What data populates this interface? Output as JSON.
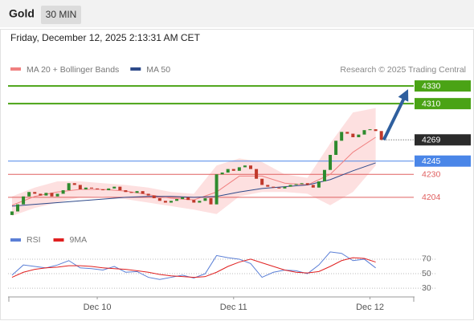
{
  "header": {
    "title": "Gold",
    "interval": "30 MIN",
    "timestamp": "Friday, December 12, 2025 2:13:31 AM CET"
  },
  "chart_data": [
    {
      "type": "candlestick",
      "source": "Research © 2025 Trading Central",
      "up_color": "#2e8b2e",
      "down_color": "#c0392b",
      "xlim": [
        -15.7,
        55.7
      ],
      "ylim": [
        4173,
        4341
      ],
      "xticks": [
        {
          "value": 0,
          "label": "Dec 10"
        },
        {
          "value": 24,
          "label": "Dec 11"
        },
        {
          "value": 48,
          "label": "Dec 12"
        }
      ],
      "x": [
        -15,
        -14,
        -13,
        -12,
        -11,
        -10,
        -9,
        -8,
        -7,
        -6,
        -5,
        -4,
        -3,
        -2,
        -1,
        0,
        1,
        2,
        3,
        4,
        5,
        6,
        7,
        8,
        9,
        10,
        11,
        12,
        13,
        14,
        15,
        16,
        17,
        18,
        19,
        20,
        21,
        22,
        23,
        24,
        25,
        26,
        27,
        28,
        29,
        30,
        31,
        32,
        33,
        34,
        35,
        36,
        37,
        38,
        39,
        40,
        41,
        42,
        43,
        44,
        45,
        46,
        47,
        48,
        49,
        50
      ],
      "open": [
        4184,
        4188,
        4196,
        4205,
        4210,
        4208,
        4206,
        4209,
        4205,
        4208,
        4212,
        4220,
        4218,
        4213,
        4215,
        4214,
        4213,
        4212,
        4214,
        4216,
        4212,
        4210,
        4209,
        4211,
        4208,
        4206,
        4203,
        4200,
        4198,
        4200,
        4202,
        4204,
        4201,
        4198,
        4200,
        4203,
        4196,
        4230,
        4232,
        4236,
        4234,
        4238,
        4240,
        4236,
        4225,
        4218,
        4216,
        4215,
        4214,
        4216,
        4218,
        4219,
        4220,
        4218,
        4215,
        4222,
        4235,
        4252,
        4268,
        4278,
        4276,
        4272,
        4275,
        4280,
        4281,
        4279
      ],
      "close": [
        4188,
        4196,
        4205,
        4210,
        4208,
        4206,
        4209,
        4205,
        4208,
        4212,
        4220,
        4218,
        4213,
        4215,
        4214,
        4213,
        4212,
        4214,
        4216,
        4212,
        4210,
        4209,
        4211,
        4208,
        4206,
        4203,
        4200,
        4198,
        4200,
        4202,
        4204,
        4201,
        4198,
        4200,
        4203,
        4196,
        4230,
        4232,
        4236,
        4234,
        4238,
        4240,
        4236,
        4225,
        4218,
        4216,
        4215,
        4214,
        4216,
        4218,
        4219,
        4220,
        4218,
        4215,
        4222,
        4235,
        4252,
        4268,
        4278,
        4276,
        4272,
        4275,
        4280,
        4281,
        4279,
        4269
      ],
      "indicators": [
        {
          "name": "MA 20 + Bollinger Bands",
          "color": "#f08080",
          "band_color": "#fde0e0",
          "x": [
            -15,
            -11,
            -7,
            -3,
            1,
            5,
            9,
            13,
            17,
            21,
            25,
            29,
            33,
            37,
            41,
            45,
            49
          ],
          "values": [
            4195,
            4205,
            4210,
            4213,
            4213,
            4211,
            4207,
            4203,
            4201,
            4210,
            4228,
            4228,
            4220,
            4218,
            4230,
            4255,
            4272
          ],
          "upper": [
            4205,
            4215,
            4222,
            4222,
            4220,
            4218,
            4215,
            4210,
            4208,
            4240,
            4248,
            4244,
            4230,
            4226,
            4265,
            4300,
            4305
          ],
          "lower": [
            4183,
            4192,
            4198,
            4204,
            4205,
            4202,
            4198,
            4194,
            4190,
            4185,
            4205,
            4210,
            4210,
            4208,
            4195,
            4210,
            4240
          ]
        },
        {
          "name": "MA 50",
          "color": "#2e4a8a",
          "x": [
            -15,
            -11,
            -7,
            -3,
            1,
            5,
            9,
            13,
            17,
            21,
            25,
            29,
            33,
            37,
            41,
            45,
            49
          ],
          "values": [
            4194,
            4196,
            4198,
            4200,
            4202,
            4204,
            4205,
            4205,
            4204,
            4205,
            4210,
            4214,
            4216,
            4218,
            4224,
            4234,
            4243
          ]
        }
      ],
      "levels": [
        {
          "value": 4330,
          "color": "#4aa315",
          "boxed": true
        },
        {
          "value": 4310,
          "color": "#4aa315",
          "boxed": true
        },
        {
          "value": 4269,
          "color": "#2b2b2b",
          "boxed": true,
          "dotted": true
        },
        {
          "value": 4245,
          "color": "#4a86e8",
          "boxed": true
        },
        {
          "value": 4230,
          "color": "#e06060",
          "boxed": false
        },
        {
          "value": 4204,
          "color": "#e06060",
          "boxed": false
        }
      ],
      "arrow_color": "#2f5f9e"
    },
    {
      "type": "line",
      "ylim": [
        18,
        81
      ],
      "yticks": [
        30,
        50,
        70
      ],
      "series": [
        {
          "name": "RSI",
          "color": "#5b7fd6",
          "x": [
            -15,
            -13,
            -11,
            -9,
            -7,
            -5,
            -3,
            -1,
            1,
            3,
            5,
            7,
            9,
            11,
            13,
            15,
            17,
            19,
            21,
            23,
            25,
            27,
            29,
            31,
            33,
            35,
            37,
            39,
            41,
            43,
            45,
            47,
            49
          ],
          "values": [
            48,
            62,
            60,
            58,
            62,
            68,
            58,
            57,
            55,
            60,
            52,
            53,
            45,
            42,
            45,
            48,
            44,
            50,
            75,
            72,
            70,
            64,
            45,
            52,
            55,
            54,
            50,
            62,
            80,
            78,
            68,
            70,
            58
          ]
        },
        {
          "name": "9MA",
          "color": "#e02020",
          "x": [
            -15,
            -13,
            -11,
            -9,
            -7,
            -5,
            -3,
            -1,
            1,
            3,
            5,
            7,
            9,
            11,
            13,
            15,
            17,
            19,
            21,
            23,
            25,
            27,
            29,
            31,
            33,
            35,
            37,
            39,
            41,
            43,
            45,
            47,
            49
          ],
          "values": [
            45,
            52,
            56,
            58,
            59,
            61,
            61,
            60,
            58,
            57,
            56,
            54,
            52,
            49,
            47,
            46,
            45,
            46,
            52,
            60,
            66,
            70,
            65,
            60,
            55,
            52,
            51,
            53,
            60,
            68,
            72,
            71,
            66
          ]
        }
      ]
    }
  ]
}
